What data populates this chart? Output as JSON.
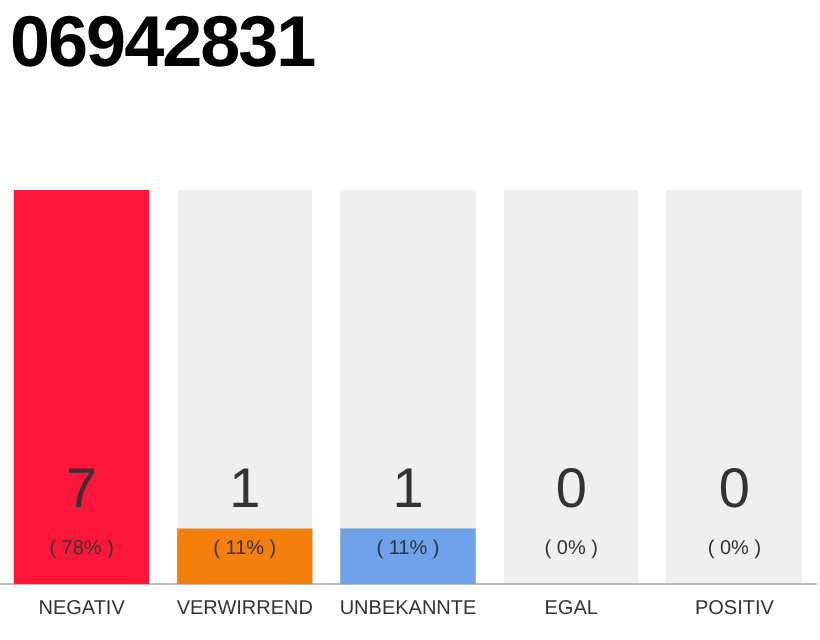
{
  "chart_data": {
    "type": "bar",
    "title": "06942831",
    "categories": [
      "NEGATIV",
      "VERWIRREND",
      "UNBEKANNTE",
      "EGAL",
      "POSITIV"
    ],
    "values": [
      78,
      11,
      11,
      0,
      0
    ],
    "colors": [
      "#fd1639",
      "#f57f0c",
      "#6ea2ea",
      "#efefef",
      "#efefef"
    ],
    "value_labels": [
      "( 78% )",
      "( 11% )",
      "( 11% )",
      "( 0% )",
      "( 0% )"
    ],
    "annotations": [
      "7",
      "1",
      "1",
      "0",
      "0"
    ],
    "ylim": [
      0,
      78
    ],
    "tick_labels": "x",
    "grid": false,
    "legend": false
  }
}
